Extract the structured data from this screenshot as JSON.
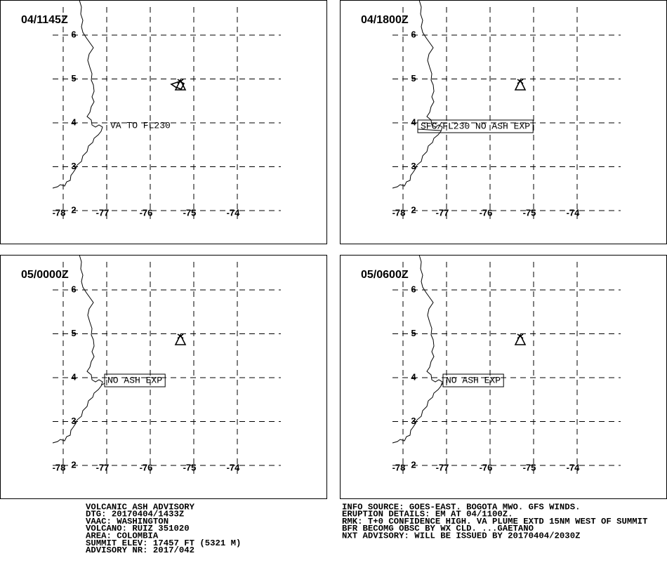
{
  "latitudes": [
    6,
    5,
    4,
    3,
    2
  ],
  "longitudes": [
    -78,
    -77,
    -76,
    -75,
    -74
  ],
  "panels": [
    {
      "time": "04/1145Z",
      "annotation": "VA TO FL230",
      "boxed": false,
      "ash_area": true
    },
    {
      "time": "04/1800Z",
      "annotation": "SFC/FL230 NO ASH EXP",
      "boxed": true,
      "ash_area": false
    },
    {
      "time": "05/0000Z",
      "annotation": "NO ASH EXP",
      "boxed": true,
      "ash_area": false
    },
    {
      "time": "05/0600Z",
      "annotation": "NO ASH EXP",
      "boxed": true,
      "ash_area": false
    }
  ],
  "footer_left": [
    "VOLCANIC ASH ADVISORY",
    "DTG: 20170404/1433Z",
    "VAAC: WASHINGTON",
    "VOLCANO: RUIZ 351020",
    "AREA: COLOMBIA",
    "SUMMIT ELEV: 17457 FT (5321 M)",
    "ADVISORY NR: 2017/042"
  ],
  "footer_right": [
    "INFO SOURCE: GOES-EAST. BOGOTA MWO. GFS WINDS.",
    "ERUPTION DETAILS: EM AT 04/1100Z.",
    "RMK: T+0 CONFIDENCE HIGH. VA PLUME EXTD 15NM WEST OF SUMMIT",
    "BFR BECOMG OBSC BY WX CLD. ...GAETANO",
    "NXT ADVISORY: WILL BE ISSUED BY 20170404/2030Z"
  ]
}
